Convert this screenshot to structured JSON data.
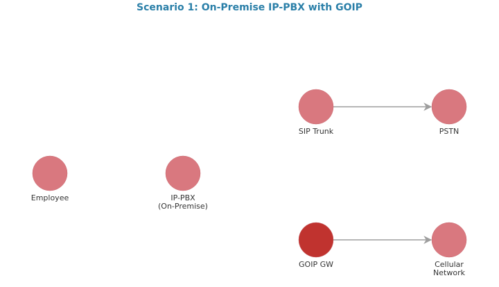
{
  "title": "Scenario 1: On-Premise IP-PBX with GOIP",
  "colors": {
    "node": "#d9787f",
    "highlight": "#c0332f",
    "edge": "#9e9e9e",
    "title": "#2a7fa8"
  },
  "nodes": [
    {
      "id": "employee",
      "label": [
        "Employee"
      ],
      "highlight": false
    },
    {
      "id": "ippbx",
      "label": [
        "IP-PBX",
        "(On-Premise)"
      ],
      "highlight": false
    },
    {
      "id": "siptrunk",
      "label": [
        "SIP Trunk"
      ],
      "highlight": false
    },
    {
      "id": "pstn",
      "label": [
        "PSTN"
      ],
      "highlight": false
    },
    {
      "id": "goipgw",
      "label": [
        "GOIP GW"
      ],
      "highlight": true
    },
    {
      "id": "cellular",
      "label": [
        "Cellular",
        "Network"
      ],
      "highlight": false
    }
  ],
  "edges": [
    {
      "from": "siptrunk",
      "to": "pstn"
    },
    {
      "from": "goipgw",
      "to": "cellular"
    }
  ]
}
